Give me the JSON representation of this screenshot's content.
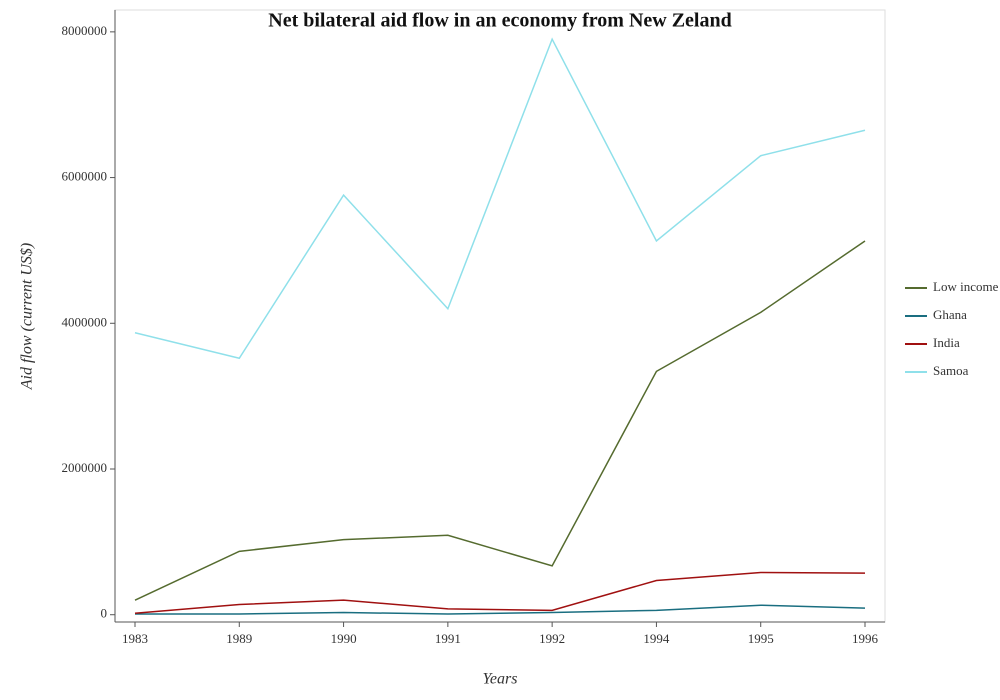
{
  "chart_data": {
    "type": "line",
    "title": "Net bilateral aid flow in an economy from New Zeland",
    "x_label": "Years",
    "y_label": "Aid flow (current US$)",
    "categories": [
      "1983",
      "1989",
      "1990",
      "1991",
      "1992",
      "1994",
      "1995",
      "1996"
    ],
    "series": [
      {
        "name": "Low income",
        "color": "#556b2f",
        "values": [
          200000,
          870000,
          1030000,
          1090000,
          670000,
          3340000,
          4150000,
          5130000
        ]
      },
      {
        "name": "Ghana",
        "color": "#1a6e80",
        "values": [
          10000,
          10000,
          30000,
          10000,
          30000,
          60000,
          130000,
          90000
        ]
      },
      {
        "name": "India",
        "color": "#a01010",
        "values": [
          20000,
          140000,
          200000,
          80000,
          60000,
          470000,
          580000,
          570000
        ]
      },
      {
        "name": "Samoa",
        "color": "#8fe0ea",
        "values": [
          3870000,
          3520000,
          5760000,
          4200000,
          7900000,
          5130000,
          6300000,
          6650000
        ]
      }
    ],
    "ylim": [
      -100000,
      8300000
    ],
    "yticks": [
      0,
      2000000,
      4000000,
      6000000,
      8000000
    ],
    "legend": "right"
  }
}
